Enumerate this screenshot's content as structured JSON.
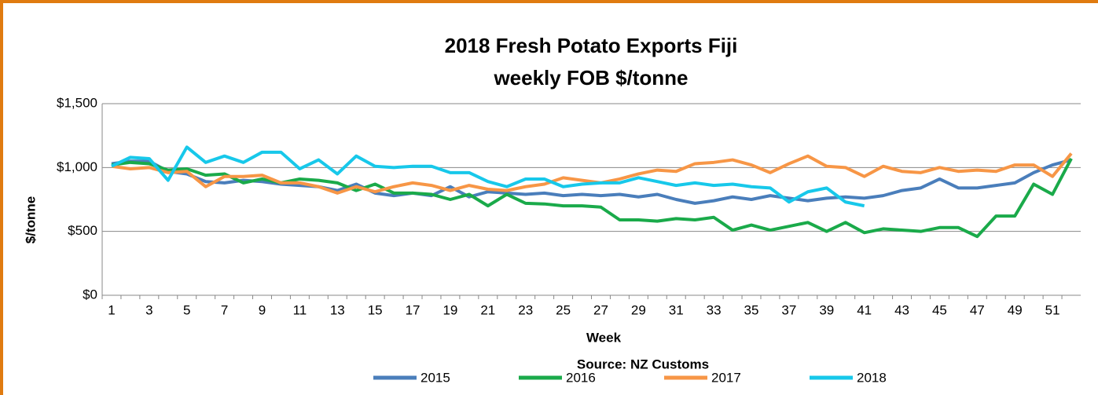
{
  "chart_data": {
    "type": "line",
    "title": "2018 Fresh Potato Exports Fiji",
    "subtitle": "weekly FOB $/tonne",
    "x_label": "Week",
    "y_label": "$/tonne",
    "annotation": "Source: NZ Customs",
    "categories": [
      1,
      null,
      3,
      null,
      5,
      null,
      7,
      null,
      9,
      null,
      11,
      null,
      13,
      null,
      15,
      null,
      17,
      null,
      19,
      null,
      21,
      null,
      23,
      null,
      25,
      null,
      27,
      null,
      29,
      null,
      31,
      null,
      33,
      null,
      35,
      null,
      37,
      null,
      39,
      null,
      41,
      null,
      43,
      null,
      45,
      null,
      47,
      null,
      49,
      null,
      51,
      null
    ],
    "ylim": [
      0,
      1500
    ],
    "yticks": [
      {
        "value": 0,
        "label": "$0"
      },
      {
        "value": 500,
        "label": "$500"
      },
      {
        "value": 1000,
        "label": "$1,000"
      },
      {
        "value": 1500,
        "label": "$1,500"
      }
    ],
    "grid": true,
    "legend": "bottom",
    "series": [
      {
        "name": "2015",
        "color": "#4a7ebb",
        "values": [
          1030,
          1050,
          1050,
          970,
          950,
          890,
          880,
          900,
          890,
          870,
          860,
          850,
          820,
          870,
          800,
          780,
          800,
          780,
          850,
          770,
          810,
          800,
          790,
          800,
          780,
          790,
          780,
          790,
          770,
          790,
          750,
          720,
          740,
          770,
          750,
          780,
          760,
          740,
          760,
          770,
          760,
          780,
          820,
          840,
          910,
          840,
          840,
          860,
          880,
          960,
          1020,
          1060
        ]
      },
      {
        "name": "2016",
        "color": "#1aaa4a",
        "values": [
          1020,
          1040,
          1030,
          980,
          990,
          940,
          950,
          880,
          910,
          880,
          910,
          900,
          880,
          820,
          870,
          800,
          800,
          790,
          750,
          790,
          700,
          790,
          720,
          715,
          700,
          700,
          690,
          590,
          590,
          580,
          600,
          590,
          610,
          510,
          550,
          510,
          540,
          570,
          500,
          570,
          490,
          520,
          510,
          500,
          530,
          530,
          460,
          620,
          620,
          870,
          790,
          1070
        ]
      },
      {
        "name": "2017",
        "color": "#f79646",
        "values": [
          1010,
          990,
          1000,
          960,
          970,
          850,
          930,
          930,
          940,
          880,
          880,
          850,
          800,
          850,
          810,
          850,
          880,
          860,
          820,
          860,
          830,
          820,
          850,
          870,
          920,
          900,
          880,
          910,
          950,
          980,
          970,
          1030,
          1040,
          1060,
          1020,
          960,
          1030,
          1090,
          1010,
          1000,
          930,
          1010,
          970,
          960,
          1000,
          970,
          980,
          970,
          1020,
          1020,
          930,
          1110
        ]
      },
      {
        "name": "2018",
        "color": "#17c8ea",
        "values": [
          1010,
          1080,
          1070,
          900,
          1160,
          1040,
          1090,
          1040,
          1120,
          1120,
          990,
          1060,
          950,
          1090,
          1010,
          1000,
          1010,
          1010,
          960,
          960,
          890,
          850,
          910,
          910,
          850,
          870,
          880,
          880,
          920,
          890,
          860,
          880,
          860,
          870,
          850,
          840,
          730,
          810,
          840,
          730,
          700,
          null,
          null,
          null,
          null,
          null,
          null,
          null,
          null,
          null,
          null,
          null
        ]
      }
    ]
  }
}
